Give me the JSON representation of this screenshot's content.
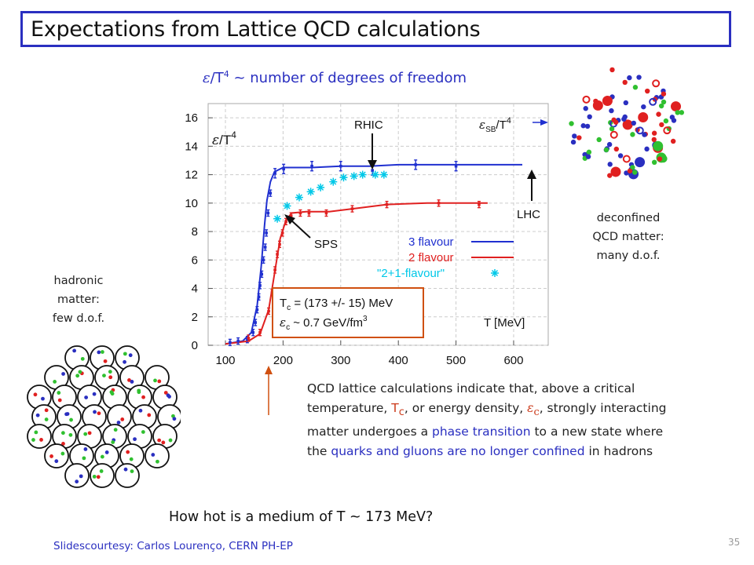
{
  "title": "Expectations from Lattice QCD calculations",
  "subtitle": {
    "eps": "ε",
    "rest": "/T",
    "sup": "4",
    "tail": " ~ number of degrees of freedom"
  },
  "hadronic_label": [
    "hadronic",
    "matter:",
    "few d.o.f."
  ],
  "deconfined_label": [
    "deconfined",
    "QCD matter:",
    "many d.o.f."
  ],
  "description": {
    "p1": "QCD lattice calculations indicate that, above a critical temperature, ",
    "tc_t": "T",
    "tc_sub": "c",
    "p2": ", or energy density, ",
    "ec_e": "ε",
    "ec_sub": "c",
    "p3": ", strongly interacting matter undergoes a ",
    "hl1": "phase transition",
    "p4": " to a new state where the ",
    "hl2": "quarks and gluons are no longer confined",
    "p5": " in hadrons"
  },
  "question": "How hot is a medium of T ~ 173 MeV?",
  "credit": "Slidescourtesy: Carlos Lourenço, CERN PH-EP",
  "page_number": "35",
  "colors": {
    "blue": "#2a2fc0",
    "red": "#e02020",
    "cyan": "#00c8e8",
    "orange": "#d05010",
    "green": "#30c030"
  },
  "chart_data": {
    "type": "line",
    "xlabel": "T [MeV]",
    "ylabel": "ε/T⁴",
    "xlim": [
      70,
      660
    ],
    "ylim": [
      0,
      17
    ],
    "xticks": [
      100,
      200,
      300,
      400,
      500,
      600
    ],
    "yticks": [
      0,
      2,
      4,
      6,
      8,
      10,
      12,
      14,
      16
    ],
    "series": [
      {
        "name": "3 flavour",
        "color": "#2030d0",
        "marker": "errorbar",
        "curve": [
          [
            100,
            0.1
          ],
          [
            130,
            0.3
          ],
          [
            145,
            0.9
          ],
          [
            155,
            2.8
          ],
          [
            162,
            5.5
          ],
          [
            168,
            8.5
          ],
          [
            172,
            10.2
          ],
          [
            178,
            11.5
          ],
          [
            185,
            12.2
          ],
          [
            200,
            12.5
          ],
          [
            250,
            12.5
          ],
          [
            300,
            12.6
          ],
          [
            350,
            12.6
          ],
          [
            400,
            12.7
          ],
          [
            450,
            12.7
          ],
          [
            500,
            12.7
          ],
          [
            550,
            12.7
          ],
          [
            615,
            12.7
          ]
        ],
        "points": [
          [
            108,
            0.2
          ],
          [
            122,
            0.3
          ],
          [
            138,
            0.4
          ],
          [
            148,
            0.9
          ],
          [
            152,
            1.6
          ],
          [
            155,
            2.5
          ],
          [
            158,
            3.4
          ],
          [
            160,
            4.2
          ],
          [
            163,
            5.0
          ],
          [
            166,
            6.0
          ],
          [
            169,
            6.9
          ],
          [
            171,
            7.9
          ],
          [
            174,
            9.3
          ],
          [
            178,
            10.7
          ],
          [
            186,
            12.1
          ],
          [
            201,
            12.4
          ],
          [
            250,
            12.6
          ],
          [
            300,
            12.6
          ],
          [
            355,
            12.3
          ],
          [
            430,
            12.7
          ],
          [
            500,
            12.6
          ]
        ]
      },
      {
        "name": "2 flavour",
        "color": "#e02020",
        "marker": "errorbar",
        "curve": [
          [
            100,
            0.1
          ],
          [
            140,
            0.3
          ],
          [
            160,
            0.8
          ],
          [
            175,
            2.5
          ],
          [
            185,
            5.0
          ],
          [
            195,
            7.5
          ],
          [
            205,
            8.8
          ],
          [
            215,
            9.3
          ],
          [
            240,
            9.4
          ],
          [
            280,
            9.4
          ],
          [
            320,
            9.6
          ],
          [
            380,
            9.9
          ],
          [
            450,
            10.0
          ],
          [
            520,
            10.0
          ],
          [
            555,
            10.0
          ]
        ],
        "points": [
          [
            140,
            0.5
          ],
          [
            160,
            0.9
          ],
          [
            175,
            2.4
          ],
          [
            181,
            3.7
          ],
          [
            186,
            5.3
          ],
          [
            190,
            6.4
          ],
          [
            194,
            7.1
          ],
          [
            199,
            7.9
          ],
          [
            205,
            8.7
          ],
          [
            214,
            9.1
          ],
          [
            230,
            9.3
          ],
          [
            245,
            9.3
          ],
          [
            275,
            9.3
          ],
          [
            320,
            9.6
          ],
          [
            380,
            9.9
          ],
          [
            470,
            10.0
          ],
          [
            540,
            9.9
          ]
        ]
      },
      {
        "name": "\"2+1-flavour\"",
        "color": "#00c8e8",
        "marker": "asterisk",
        "points": [
          [
            190,
            8.9
          ],
          [
            207,
            9.8
          ],
          [
            228,
            10.4
          ],
          [
            248,
            10.8
          ],
          [
            265,
            11.1
          ],
          [
            287,
            11.5
          ],
          [
            305,
            11.8
          ],
          [
            323,
            11.9
          ],
          [
            338,
            12.0
          ],
          [
            360,
            12.0
          ],
          [
            375,
            12.0
          ]
        ]
      }
    ],
    "annotations": {
      "rhic": "RHIC",
      "lhc": "LHC",
      "sps": "SPS",
      "esb_e": "ε",
      "esb_sub": "SB",
      "esb_rest": "/T",
      "esb_sup": "4",
      "tc_text": "T",
      "tc_sub": "c",
      "tc_value": " = (173 +/- 15) MeV",
      "ec_text": "ε",
      "ec_sub": "c",
      "ec_value": " ~ 0.7 GeV/fm",
      "ec_sup": "3"
    }
  }
}
